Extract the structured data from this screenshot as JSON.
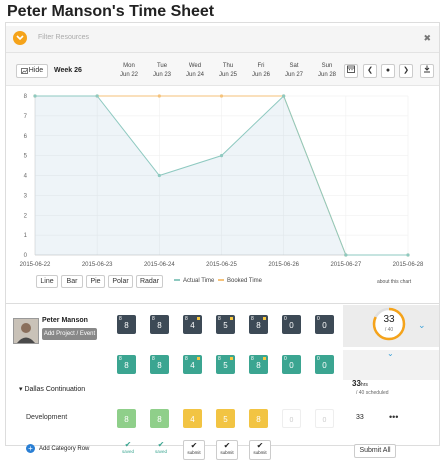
{
  "page": {
    "title": "Peter Manson's Time Sheet"
  },
  "filter": {
    "placeholder": "Filter Resources"
  },
  "toolbar": {
    "hide_label": "Hide",
    "week_label": "Week 26"
  },
  "days": [
    {
      "name": "Mon",
      "date": "Jun 22"
    },
    {
      "name": "Tue",
      "date": "Jun 23"
    },
    {
      "name": "Wed",
      "date": "Jun 24"
    },
    {
      "name": "Thu",
      "date": "Jun 25"
    },
    {
      "name": "Fri",
      "date": "Jun 26"
    },
    {
      "name": "Sat",
      "date": "Jun 27"
    },
    {
      "name": "Sun",
      "date": "Jun 28"
    }
  ],
  "chart_data": {
    "type": "line",
    "x": [
      "2015-06-22",
      "2015-06-23",
      "2015-06-24",
      "2015-06-25",
      "2015-06-26",
      "2015-06-27",
      "2015-06-28"
    ],
    "y_ticks": [
      "0",
      "1",
      "2",
      "3",
      "4",
      "5",
      "6",
      "7",
      "8"
    ],
    "ylim": [
      0,
      8
    ],
    "series": [
      {
        "name": "Actual Time",
        "values": [
          8,
          8,
          4,
          5,
          8,
          0,
          0
        ],
        "color": "#8ec9c0"
      },
      {
        "name": "Booked Time",
        "values": [
          8,
          8,
          8,
          8,
          8,
          0,
          0
        ],
        "color": "#f5c27a"
      }
    ],
    "legend_position": "bottom"
  },
  "chart_types": [
    "Line",
    "Bar",
    "Pie",
    "Polar",
    "Radar"
  ],
  "legend": {
    "actual": "Actual Time",
    "booked": "Booked Time"
  },
  "about_chart": "about this chart",
  "person": {
    "name": "Peter Manson",
    "add_button": "Add Project / Event",
    "summary_value": "33",
    "summary_sub": "/ 40",
    "summary_fraction": 0.825,
    "daily": [
      {
        "small": "8",
        "value": "8",
        "flag": false
      },
      {
        "small": "8",
        "value": "8",
        "flag": false
      },
      {
        "small": "8",
        "value": "4",
        "flag": true
      },
      {
        "small": "8",
        "value": "5",
        "flag": true
      },
      {
        "small": "8",
        "value": "8",
        "flag": true
      },
      {
        "small": "0",
        "value": "0",
        "flag": false
      },
      {
        "small": "0",
        "value": "0",
        "flag": false
      }
    ]
  },
  "project": {
    "name": "Dallas Continuation",
    "hours": "33",
    "hours_unit": "hrs",
    "scheduled": "/ 40 scheduled",
    "daily": [
      {
        "small": "8",
        "value": "8",
        "flag": false
      },
      {
        "small": "8",
        "value": "8",
        "flag": false
      },
      {
        "small": "8",
        "value": "4",
        "flag": true
      },
      {
        "small": "8",
        "value": "5",
        "flag": true
      },
      {
        "small": "8",
        "value": "8",
        "flag": true
      },
      {
        "small": "0",
        "value": "0",
        "flag": false
      },
      {
        "small": "0",
        "value": "0",
        "flag": false
      }
    ]
  },
  "category": {
    "name": "Development",
    "total": "33",
    "more": "•••",
    "entries": [
      {
        "value": "8",
        "style": "green"
      },
      {
        "value": "8",
        "style": "green"
      },
      {
        "value": "4",
        "style": "yellow"
      },
      {
        "value": "5",
        "style": "yellow"
      },
      {
        "value": "8",
        "style": "yellow"
      },
      {
        "value": "0",
        "style": "empty"
      },
      {
        "value": "0",
        "style": "empty"
      }
    ]
  },
  "footer": {
    "add_category": "Add Category Row",
    "statuses": [
      {
        "label": "saved",
        "type": "saved"
      },
      {
        "label": "saved",
        "type": "saved"
      },
      {
        "label": "submit",
        "type": "submit"
      },
      {
        "label": "submit",
        "type": "submit"
      },
      {
        "label": "submit",
        "type": "submit"
      }
    ],
    "submit_all": "Submit All"
  }
}
